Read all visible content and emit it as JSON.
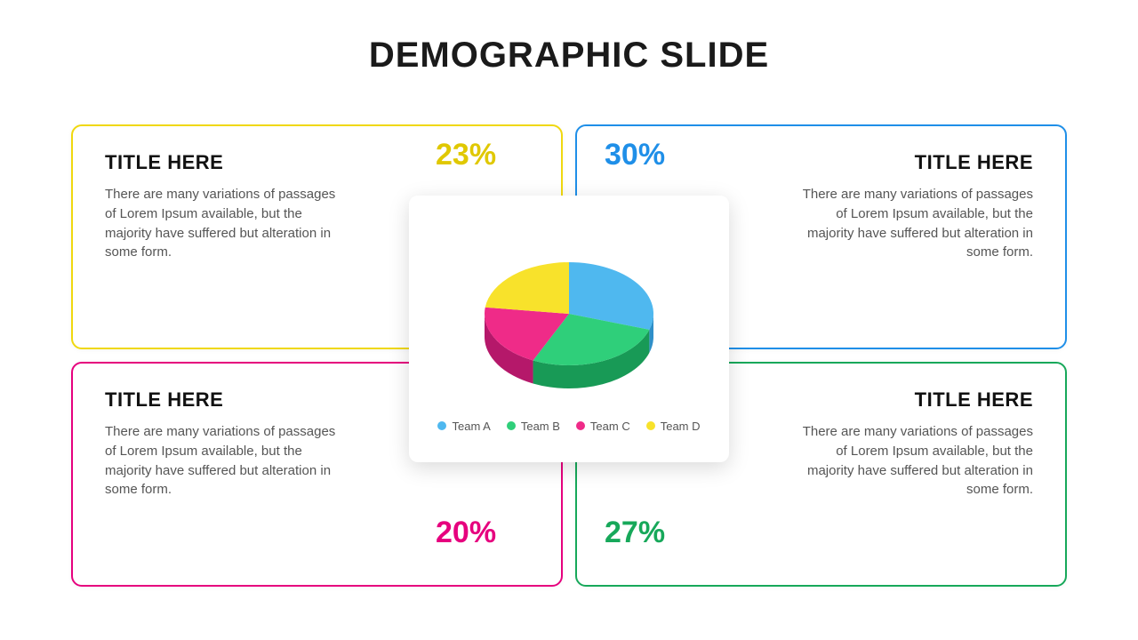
{
  "title": "DEMOGRAPHIC SLIDE",
  "cards": {
    "top_left": {
      "title": "TITLE HERE",
      "body": "There are many variations of passages of Lorem Ipsum available, but the majority have suffered but alteration in some form.",
      "border_color": "#f0d80f",
      "percent_label": "23%",
      "percent_color": "#e0c800"
    },
    "top_right": {
      "title": "TITLE HERE",
      "body": "There are many variations of passages of Lorem Ipsum available, but the majority have suffered but alteration in some form.",
      "border_color": "#1f8fe8",
      "percent_label": "30%",
      "percent_color": "#1f8fe8"
    },
    "bottom_left": {
      "title": "TITLE HERE",
      "body": "There are many variations of passages of Lorem Ipsum available, but the majority have suffered but alteration in some form.",
      "border_color": "#e6007e",
      "percent_label": "20%",
      "percent_color": "#e6007e"
    },
    "bottom_right": {
      "title": "TITLE HERE",
      "body": "There are many variations of passages of Lorem Ipsum available, but the majority have suffered but alteration in some form.",
      "border_color": "#17a85a",
      "percent_label": "27%",
      "percent_color": "#17a85a"
    }
  },
  "pie_chart": {
    "type": "pie-3d",
    "background": "#ffffff",
    "legend_font_size": 13,
    "slices": [
      {
        "label": "Team A",
        "value": 30,
        "color": "#4fb8ef",
        "side_color": "#2f8fc8"
      },
      {
        "label": "Team B",
        "value": 27,
        "color": "#2fcf7a",
        "side_color": "#189a56"
      },
      {
        "label": "Team C",
        "value": 20,
        "color": "#ef2b88",
        "side_color": "#b5186a"
      },
      {
        "label": "Team D",
        "value": 23,
        "color": "#f8e22b",
        "side_color": "#cfba12"
      }
    ]
  }
}
